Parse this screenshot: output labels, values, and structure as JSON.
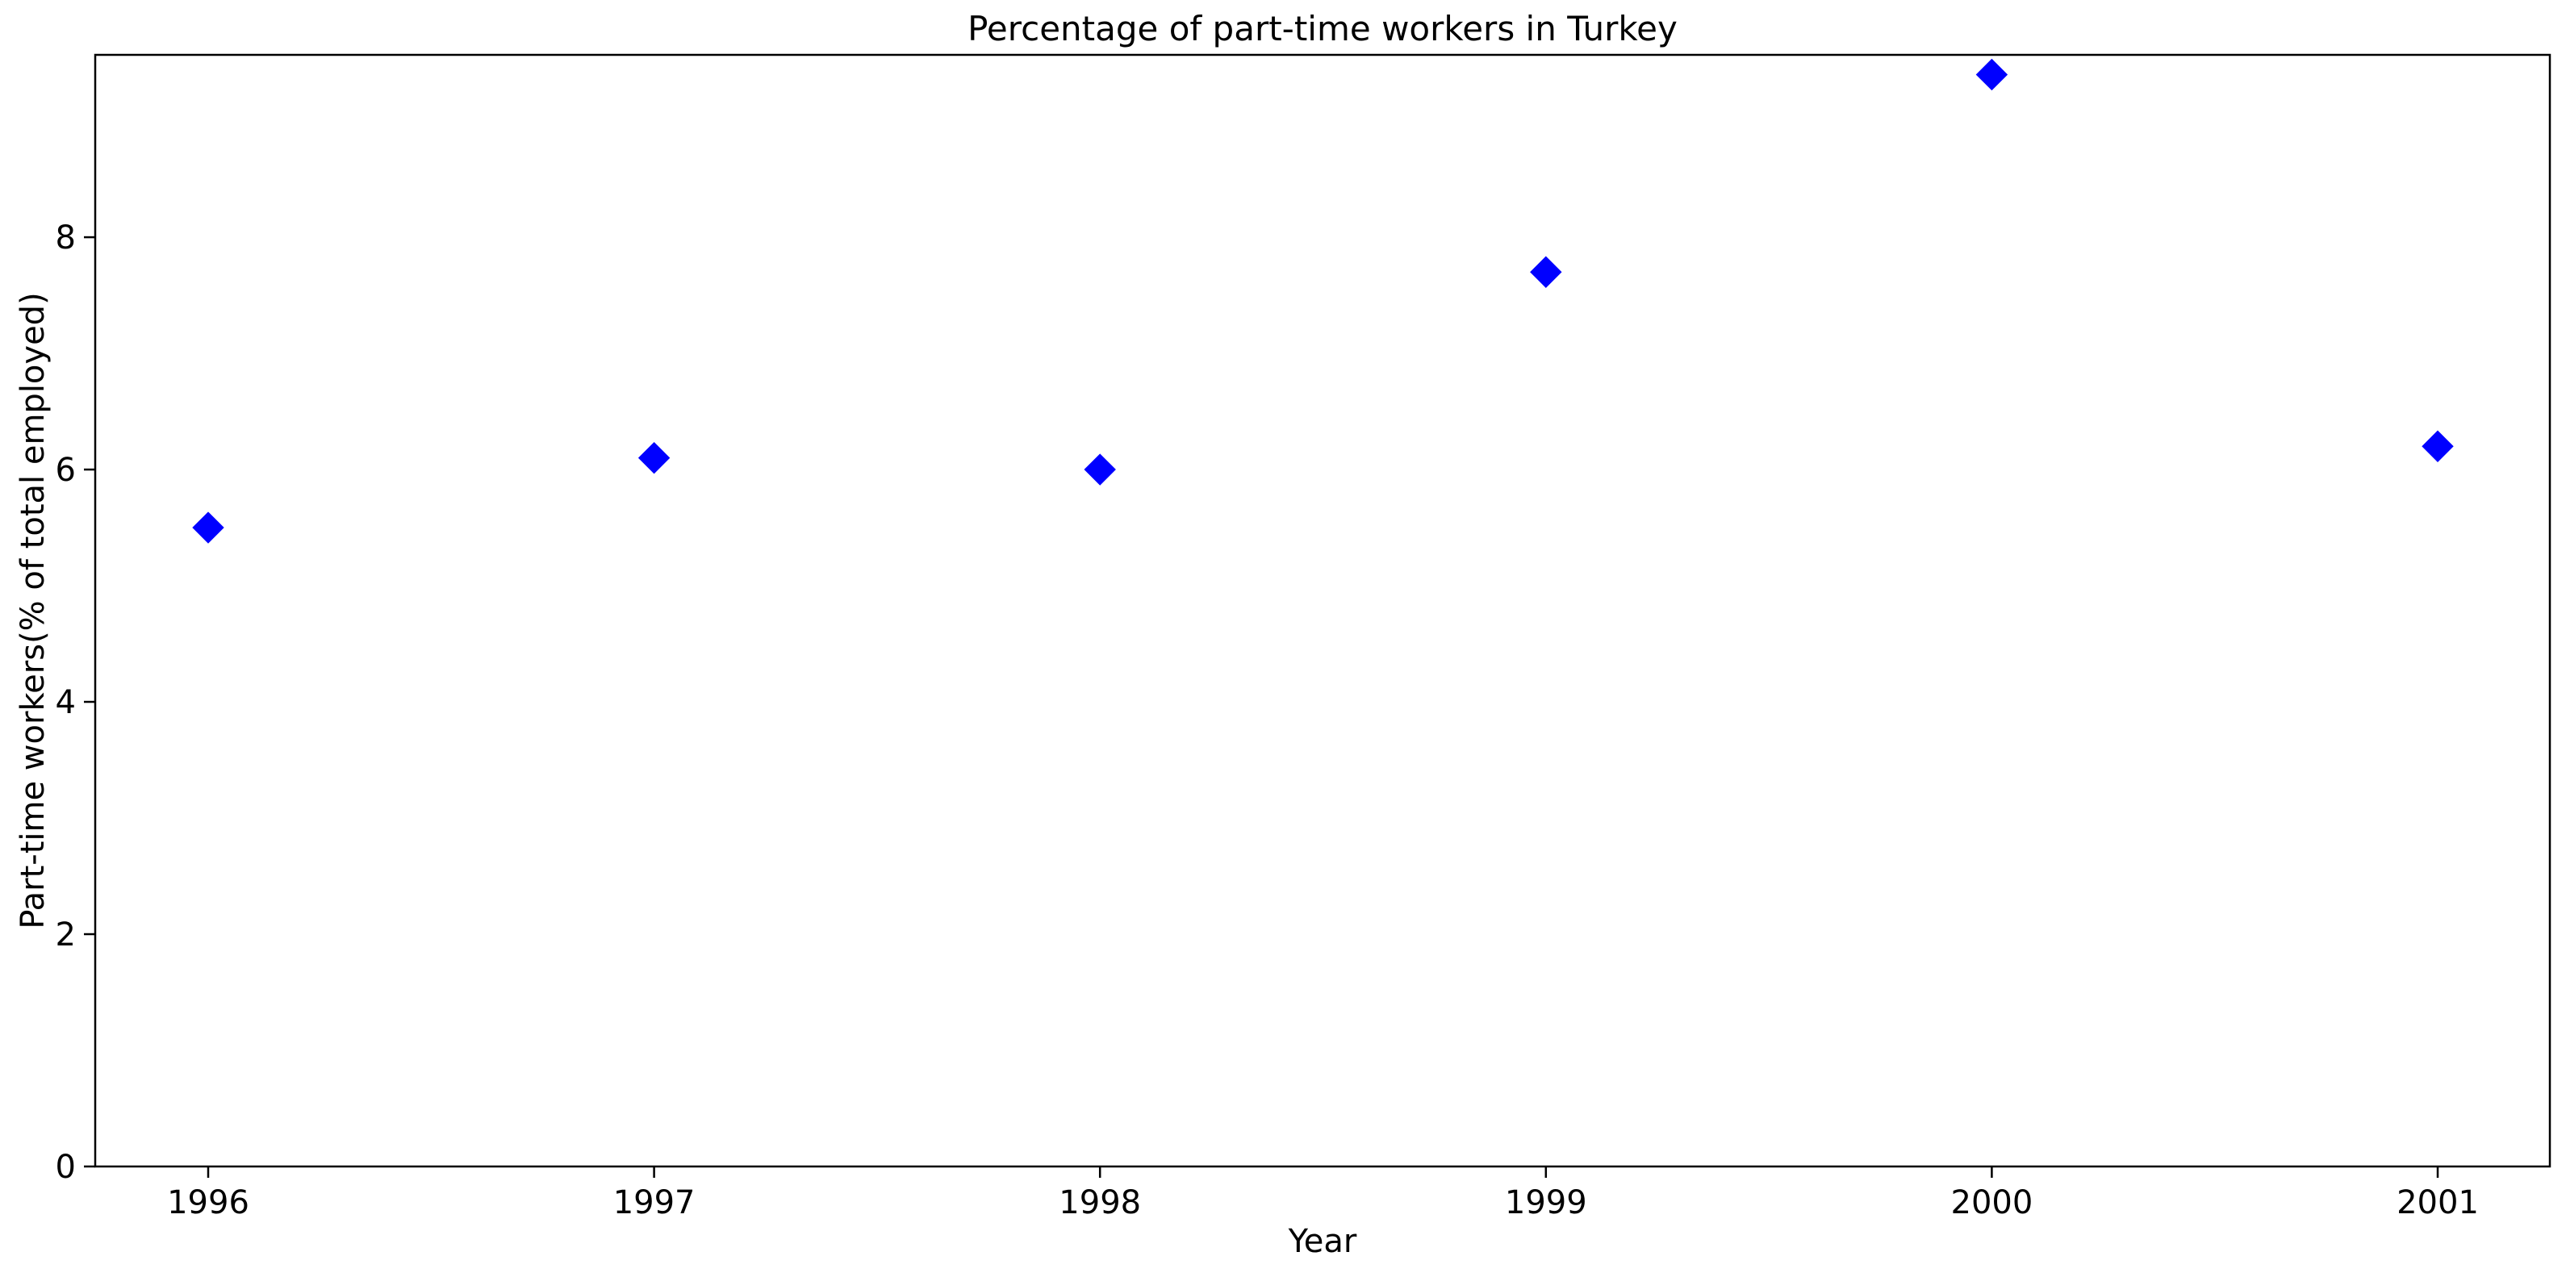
{
  "chart_data": {
    "type": "scatter",
    "title": "Percentage of part-time workers in Turkey",
    "xlabel": "Year",
    "ylabel": "Part-time workers(% of total employed)",
    "x": [
      "1996",
      "1997",
      "1998",
      "1999",
      "2000",
      "2001"
    ],
    "series": [
      {
        "values": [
          5.5,
          6.1,
          6.0,
          7.7,
          9.4,
          6.2
        ],
        "color": "#0000ff",
        "marker": "diamond"
      }
    ],
    "ylim": [
      0,
      9.57
    ],
    "yticks": [
      0,
      2,
      4,
      6,
      8
    ],
    "grid": false,
    "legend": "none"
  }
}
